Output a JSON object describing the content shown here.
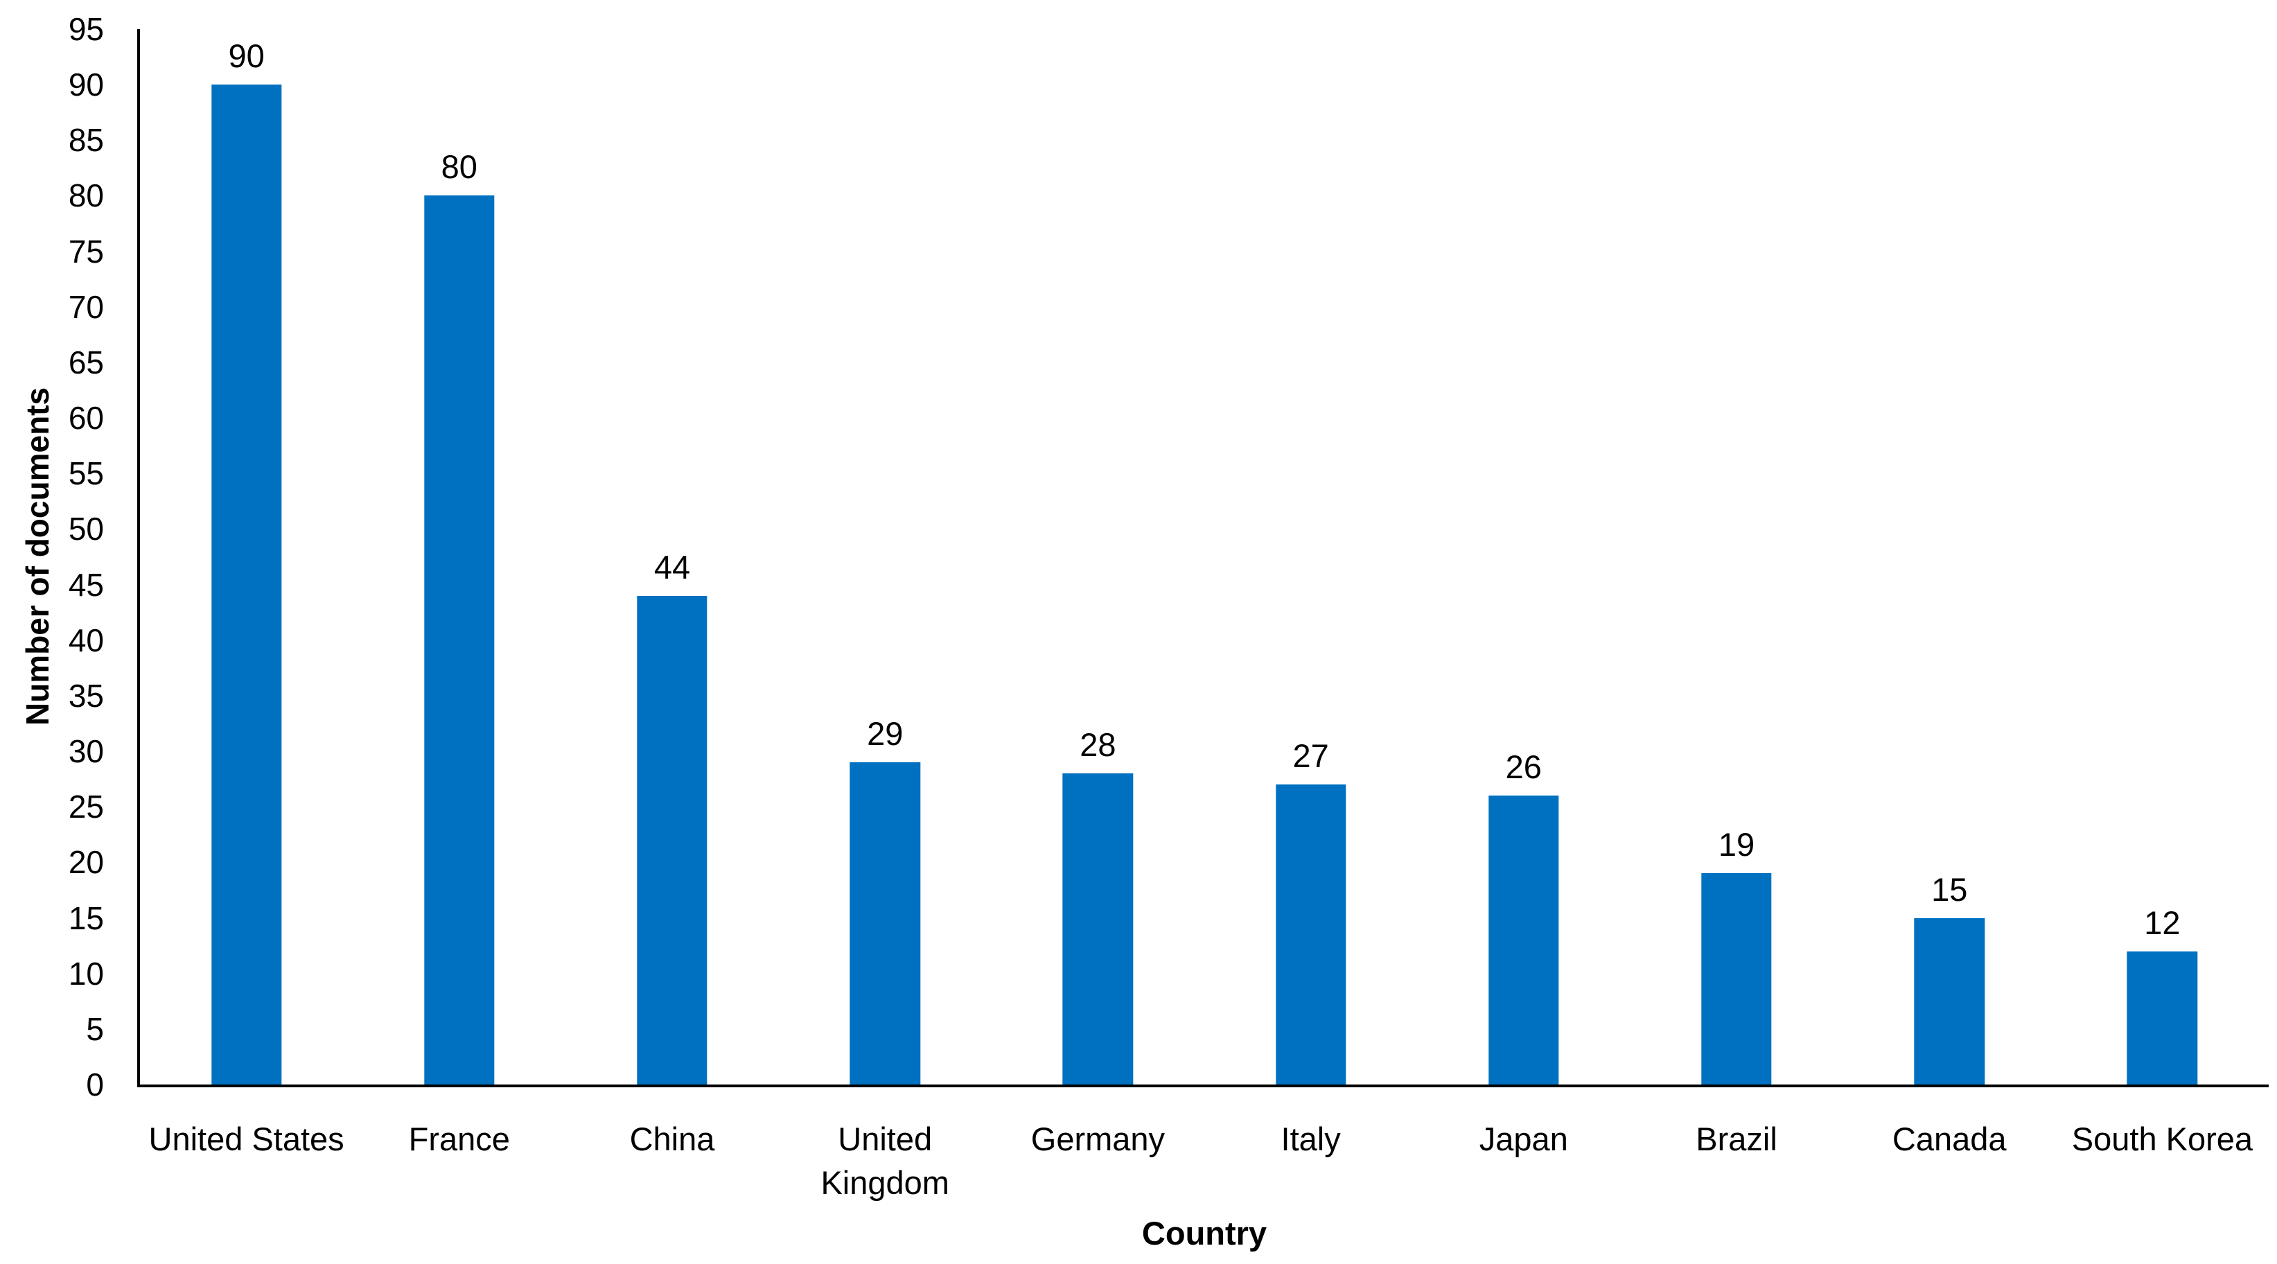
{
  "chart_data": {
    "type": "bar",
    "title": "",
    "categories": [
      "United States",
      "France",
      "China",
      "United\nKingdom",
      "Germany",
      "Italy",
      "Japan",
      "Brazil",
      "Canada",
      "South Korea"
    ],
    "values": [
      90,
      80,
      44,
      29,
      28,
      27,
      26,
      19,
      15,
      12
    ],
    "xlabel": "Country",
    "ylabel": "Number of documents",
    "ylim": [
      0,
      95
    ],
    "yticks": [
      0,
      5,
      10,
      15,
      20,
      25,
      30,
      35,
      40,
      45,
      50,
      55,
      60,
      65,
      70,
      75,
      80,
      85,
      90,
      95
    ],
    "grid": false,
    "legend": null,
    "data_labels_shown": true,
    "bar_gap_ratio": 0.33,
    "colors": {
      "bar": "#0070C0",
      "axis": "#000000",
      "text": "#000000",
      "background": "#FFFFFF"
    }
  }
}
